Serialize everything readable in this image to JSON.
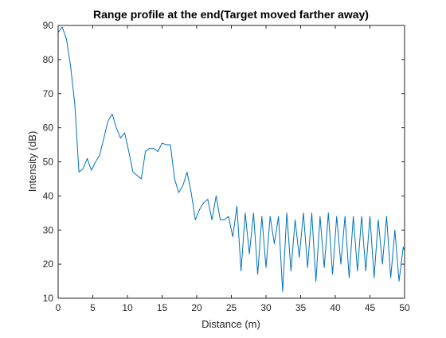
{
  "chart_data": {
    "type": "line",
    "title": "Range profile at the end(Target moved farther away)",
    "xlabel": "Distance (m)",
    "ylabel": "Intensity (dB)",
    "xlim": [
      0,
      50
    ],
    "ylim": [
      10,
      90
    ],
    "xticks": [
      0,
      5,
      10,
      15,
      20,
      25,
      30,
      35,
      40,
      45,
      50
    ],
    "yticks": [
      10,
      20,
      30,
      40,
      50,
      60,
      70,
      80,
      90
    ],
    "grid": false,
    "line_color": "#0072BD",
    "series": [
      {
        "x": [
          0,
          0.6,
          1.2,
          1.8,
          2.4,
          3.0,
          3.6,
          4.2,
          4.8,
          5.4,
          6.0,
          6.6,
          7.2,
          7.8,
          8.4,
          9.0,
          9.6,
          10.2,
          10.8,
          11.4,
          12.0,
          12.6,
          13.2,
          13.8,
          14.4,
          15.0,
          15.6,
          16.2,
          16.8,
          17.4,
          18.0,
          18.6,
          19.2,
          19.8,
          20.4,
          21.0,
          21.6,
          22.2,
          22.8,
          23.4,
          24.0,
          24.6,
          25.2,
          25.8,
          26.4,
          27.0,
          27.6,
          28.2,
          28.8,
          29.4,
          30.0,
          30.6,
          31.2,
          31.8,
          32.4,
          33.0,
          33.6,
          34.2,
          34.8,
          35.4,
          36.0,
          36.6,
          37.2,
          37.8,
          38.4,
          39.0,
          39.6,
          40.2,
          40.8,
          41.4,
          42.0,
          42.6,
          43.2,
          43.8,
          44.4,
          45.0,
          45.6,
          46.2,
          46.8,
          47.4,
          48.0,
          48.6,
          49.2,
          49.8,
          50.0
        ],
        "y": [
          88,
          89.5,
          86,
          78,
          67,
          47,
          48,
          51,
          47.5,
          50,
          52,
          57,
          62,
          64,
          60,
          57,
          58.5,
          53,
          47,
          46,
          45,
          53,
          54,
          54,
          53,
          55.5,
          55,
          55,
          45,
          41,
          43,
          47,
          41,
          33,
          36,
          38,
          39,
          33,
          40,
          33,
          33,
          34,
          28,
          37,
          18,
          35,
          23,
          35,
          17,
          34,
          19,
          34,
          26,
          34,
          12,
          35,
          18,
          33,
          22,
          35,
          19,
          35,
          15,
          34,
          19,
          35,
          17,
          34,
          20,
          34,
          16,
          34,
          18,
          34,
          18,
          34,
          16,
          33,
          20,
          34,
          16,
          30,
          15,
          25,
          24
        ]
      }
    ]
  }
}
